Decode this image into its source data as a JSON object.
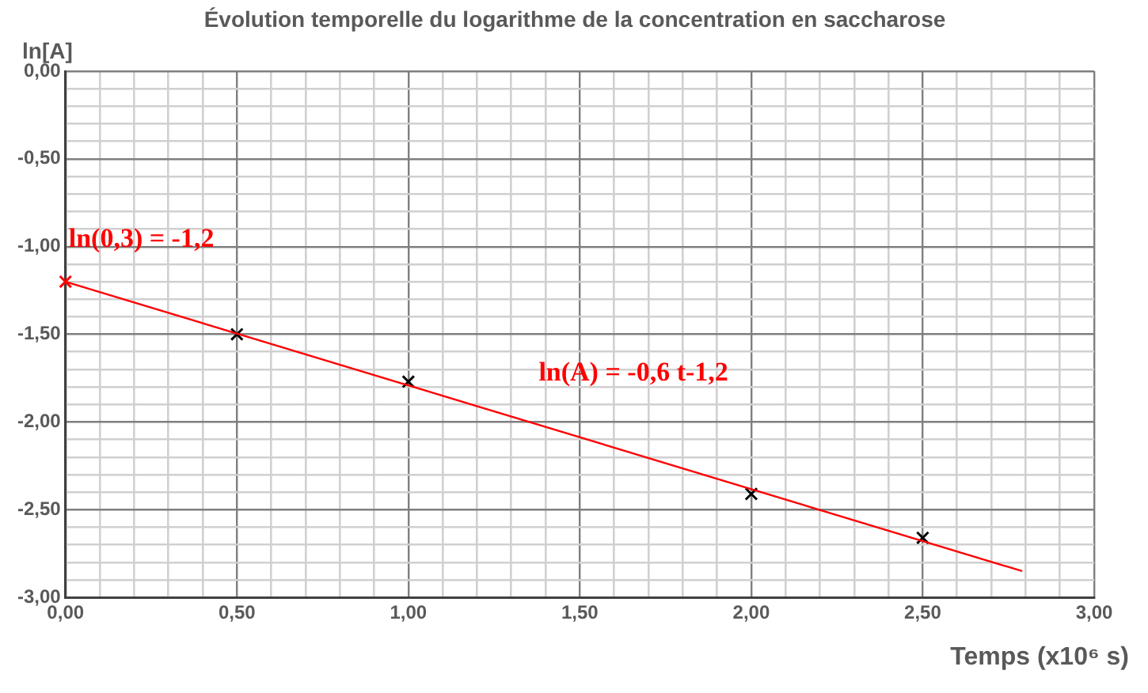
{
  "chart_data": {
    "type": "scatter",
    "title": "Évolution temporelle du logarithme de la concentration en saccharose",
    "xlabel": "Temps (x10⁶ s)",
    "ylabel": "ln[A]",
    "xlim": [
      0,
      3
    ],
    "ylim": [
      -3,
      0
    ],
    "xticks": [
      {
        "value": 0,
        "label": "0,00"
      },
      {
        "value": 0.1,
        "label": null
      },
      {
        "value": 0.2,
        "label": null
      },
      {
        "value": 0.3,
        "label": null
      },
      {
        "value": 0.4,
        "label": null
      },
      {
        "value": 0.5,
        "label": "0,50"
      },
      {
        "value": 0.6,
        "label": null
      },
      {
        "value": 0.7,
        "label": null
      },
      {
        "value": 0.8,
        "label": null
      },
      {
        "value": 0.9,
        "label": null
      },
      {
        "value": 1,
        "label": "1,00"
      },
      {
        "value": 1.1,
        "label": null
      },
      {
        "value": 1.2,
        "label": null
      },
      {
        "value": 1.3,
        "label": null
      },
      {
        "value": 1.4,
        "label": null
      },
      {
        "value": 1.5,
        "label": "1,50"
      },
      {
        "value": 1.6,
        "label": null
      },
      {
        "value": 1.7,
        "label": null
      },
      {
        "value": 1.8,
        "label": null
      },
      {
        "value": 1.9,
        "label": null
      },
      {
        "value": 2,
        "label": "2,00"
      },
      {
        "value": 2.1,
        "label": null
      },
      {
        "value": 2.2,
        "label": null
      },
      {
        "value": 2.3,
        "label": null
      },
      {
        "value": 2.4,
        "label": null
      },
      {
        "value": 2.5,
        "label": "2,50"
      },
      {
        "value": 2.6,
        "label": null
      },
      {
        "value": 2.7,
        "label": null
      },
      {
        "value": 2.8,
        "label": null
      },
      {
        "value": 2.9,
        "label": null
      },
      {
        "value": 3,
        "label": "3,00"
      }
    ],
    "yticks": [
      {
        "value": -3,
        "label": "-3,00"
      },
      {
        "value": -2.9,
        "label": null
      },
      {
        "value": -2.8,
        "label": null
      },
      {
        "value": -2.7,
        "label": null
      },
      {
        "value": -2.6,
        "label": null
      },
      {
        "value": -2.5,
        "label": "-2,50"
      },
      {
        "value": -2.4,
        "label": null
      },
      {
        "value": -2.3,
        "label": null
      },
      {
        "value": -2.2,
        "label": null
      },
      {
        "value": -2.1,
        "label": null
      },
      {
        "value": -2,
        "label": "-2,00"
      },
      {
        "value": -1.9,
        "label": null
      },
      {
        "value": -1.8,
        "label": null
      },
      {
        "value": -1.7,
        "label": null
      },
      {
        "value": -1.6,
        "label": null
      },
      {
        "value": -1.5,
        "label": "-1,50"
      },
      {
        "value": -1.4,
        "label": null
      },
      {
        "value": -1.3,
        "label": null
      },
      {
        "value": -1.2,
        "label": null
      },
      {
        "value": -1.1,
        "label": null
      },
      {
        "value": -1,
        "label": "-1,00"
      },
      {
        "value": -0.9,
        "label": null
      },
      {
        "value": -0.8,
        "label": null
      },
      {
        "value": -0.7,
        "label": null
      },
      {
        "value": -0.6,
        "label": null
      },
      {
        "value": -0.5,
        "label": "-0,50"
      },
      {
        "value": -0.4,
        "label": null
      },
      {
        "value": -0.3,
        "label": null
      },
      {
        "value": -0.2,
        "label": null
      },
      {
        "value": -0.1,
        "label": null
      },
      {
        "value": 0,
        "label": "0,00"
      }
    ],
    "grid": true,
    "legend": false,
    "marker": "cross",
    "series": [
      {
        "type": "line",
        "color": "#ff0000",
        "x": [
          0,
          2.79
        ],
        "values": [
          -1.2,
          -2.85
        ],
        "marker": "none",
        "line_style": "solid"
      },
      {
        "color": "#000000",
        "x": [
          0.5,
          1,
          2,
          2.5
        ],
        "values": [
          -1.5,
          -1.77,
          -2.41,
          -2.66
        ]
      },
      {
        "color": "#ff0000",
        "x": [
          0
        ],
        "values": [
          -1.2
        ]
      }
    ],
    "annotations": [
      {
        "text": "ln(0,3) = -1,2",
        "x": 0,
        "y": -1.2
      },
      "ln(A) = -0,6 t-1,2"
    ]
  }
}
